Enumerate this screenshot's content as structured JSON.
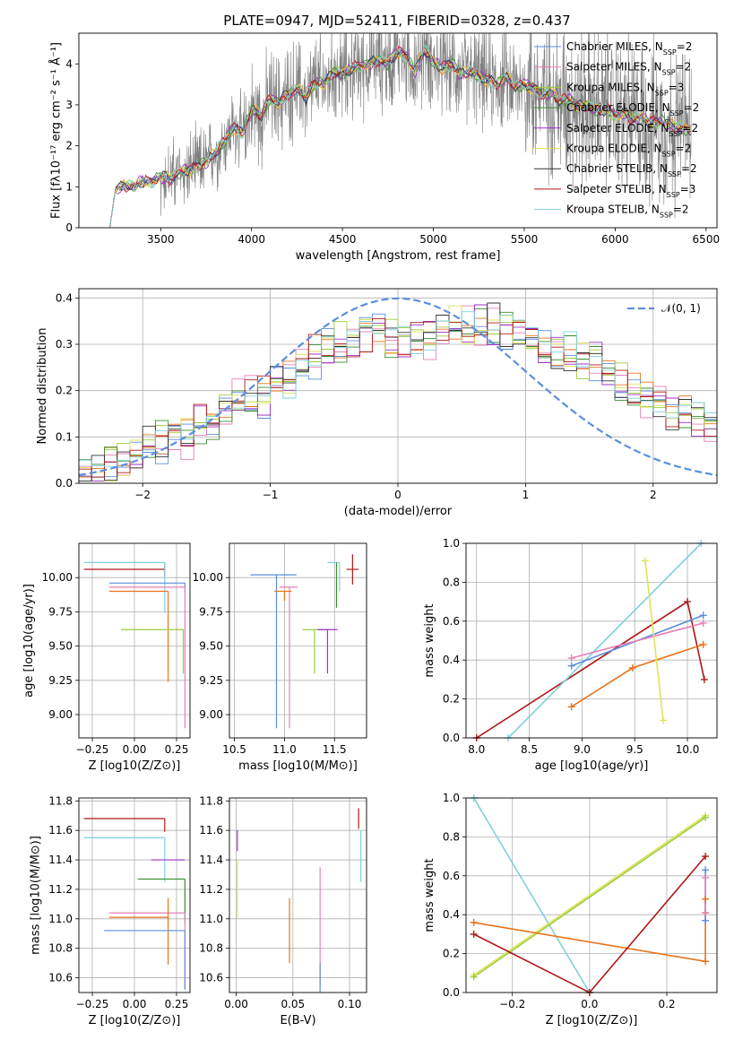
{
  "figure_title": "PLATE=0947, MJD=52411, FIBERID=0328, z=0.437",
  "colors": {
    "Chabrier MILES": "#5b8ee0",
    "Salpeter MILES": "#e67fb8",
    "Kroupa MILES": "#9ccc3a",
    "Chabrier ELODIE": "#3a8d2e",
    "Salpeter ELODIE": "#9b31c6",
    "Kroupa ELODIE": "#dfe35a",
    "Chabrier STELIB": "#333333",
    "Salpeter STELIB": "#b01818",
    "Kroupa STELIB": "#7fd0dc",
    "orange": "#e8731a",
    "data": "#808080"
  },
  "chart_data": [
    {
      "id": "spectrum",
      "type": "line",
      "title": "PLATE=0947, MJD=52411, FIBERID=0328, z=0.437",
      "xlabel": "wavelength [Angstrom, rest frame]",
      "ylabel": "Flux [fλ10⁻¹⁷ erg cm⁻² s⁻¹ Å⁻¹]",
      "xlim": [
        3050,
        6560
      ],
      "ylim": [
        0,
        4.75
      ],
      "xticks": [
        3500,
        4000,
        4500,
        5000,
        5500,
        6000,
        6500
      ],
      "yticks": [
        0,
        1,
        2,
        3,
        4
      ],
      "grid": false,
      "legend_position": "top-right",
      "legend": [
        "Chabrier MILES, N_SSP=2",
        "Salpeter MILES, N_SSP=2",
        "Kroupa MILES, N_SSP=3",
        "Chabrier ELODIE, N_SSP=2",
        "Salpeter ELODIE, N_SSP=2",
        "Kroupa ELODIE, N_SSP=2",
        "Chabrier STELIB, N_SSP=2",
        "Salpeter STELIB, N_SSP=3",
        "Kroupa STELIB, N_SSP=2"
      ],
      "model_curve": {
        "x": [
          3220,
          3250,
          3300,
          3350,
          3400,
          3450,
          3500,
          3550,
          3600,
          3650,
          3700,
          3750,
          3800,
          3850,
          3900,
          3950,
          4000,
          4050,
          4100,
          4150,
          4200,
          4250,
          4300,
          4350,
          4400,
          4450,
          4500,
          4550,
          4600,
          4650,
          4700,
          4750,
          4800,
          4850,
          4900,
          4950,
          5000,
          5050,
          5100,
          5150,
          5200,
          5250,
          5300,
          5350,
          5400,
          5450,
          5500,
          5550,
          5600,
          5650,
          5700,
          5750,
          5800,
          5850,
          5900,
          5950,
          6000,
          6050,
          6100,
          6150,
          6200,
          6250,
          6300,
          6350,
          6400
        ],
        "y": [
          0.0,
          0.9,
          1.05,
          1.0,
          1.15,
          1.1,
          1.25,
          1.2,
          1.35,
          1.4,
          1.5,
          1.6,
          1.85,
          2.1,
          2.45,
          2.3,
          2.9,
          2.75,
          3.15,
          3.05,
          3.25,
          3.4,
          3.2,
          3.55,
          3.5,
          3.8,
          3.75,
          3.9,
          3.95,
          4.0,
          4.1,
          4.0,
          4.3,
          4.2,
          3.8,
          4.35,
          4.05,
          3.9,
          4.0,
          3.75,
          3.85,
          3.7,
          3.6,
          3.5,
          3.7,
          3.45,
          3.5,
          3.4,
          3.25,
          3.3,
          3.1,
          3.15,
          2.95,
          3.0,
          2.85,
          2.9,
          2.75,
          2.8,
          2.65,
          2.7,
          2.55,
          2.6,
          2.5,
          2.45,
          2.4
        ]
      }
    },
    {
      "id": "residuals",
      "type": "step",
      "xlabel": "(data-model)/error",
      "ylabel": "Normed distribution",
      "xlim": [
        -2.5,
        2.5
      ],
      "ylim": [
        0,
        0.42
      ],
      "xticks": [
        -2,
        -1,
        0,
        1,
        2
      ],
      "yticks": [
        0.0,
        0.1,
        0.2,
        0.3,
        0.4
      ],
      "grid": true,
      "legend_position": "top-right",
      "legend": [
        "𝒩(0, 1)"
      ],
      "gaussian": {
        "mean": 0,
        "sigma": 1
      },
      "histogram": {
        "bin_start": -2.5,
        "bin_width": 0.1,
        "y": [
          0.02,
          0.025,
          0.04,
          0.05,
          0.06,
          0.08,
          0.085,
          0.1,
          0.1,
          0.12,
          0.13,
          0.15,
          0.18,
          0.19,
          0.19,
          0.21,
          0.22,
          0.25,
          0.27,
          0.29,
          0.3,
          0.31,
          0.33,
          0.32,
          0.31,
          0.3,
          0.3,
          0.31,
          0.33,
          0.34,
          0.34,
          0.35,
          0.34,
          0.33,
          0.32,
          0.31,
          0.3,
          0.29,
          0.28,
          0.27,
          0.26,
          0.24,
          0.22,
          0.2,
          0.19,
          0.17,
          0.16,
          0.15,
          0.14,
          0.13
        ]
      }
    },
    {
      "id": "age-vs-Z",
      "type": "errorbar",
      "xlabel": "Z [log10(Z/Z⊙)]",
      "ylabel": "age  [log10(age/yr)]",
      "xlim": [
        -0.33,
        0.33
      ],
      "ylim": [
        8.83,
        10.25
      ],
      "xticks": [
        -0.25,
        0.0,
        0.25
      ],
      "yticks": [
        9.0,
        9.25,
        9.5,
        9.75,
        10.0
      ],
      "grid": true,
      "points": [
        {
          "series": "Salpeter STELIB",
          "x": 0.18,
          "y": 10.06,
          "xerr": [
            0.48,
            0.0
          ],
          "yerr": [
            0.05,
            0.05
          ]
        },
        {
          "series": "Kroupa STELIB",
          "x": 0.18,
          "y": 10.11,
          "xerr": [
            0.48,
            0.0
          ],
          "yerr": [
            0.37,
            0.0
          ]
        },
        {
          "series": "Chabrier MILES",
          "x": 0.3,
          "y": 9.96,
          "xerr": [
            0.45,
            0.0
          ],
          "yerr": [
            0.07,
            0.0
          ]
        },
        {
          "series": "Salpeter MILES",
          "x": 0.3,
          "y": 9.93,
          "xerr": [
            0.45,
            0.0
          ],
          "yerr": [
            1.03,
            0.0
          ]
        },
        {
          "series": "orange",
          "x": 0.2,
          "y": 9.9,
          "xerr": [
            0.35,
            0.0
          ],
          "yerr": [
            0.66,
            0.0
          ]
        },
        {
          "series": "Kroupa MILES",
          "x": 0.29,
          "y": 9.62,
          "xerr": [
            0.37,
            0.0
          ],
          "yerr": [
            0.32,
            0.0
          ]
        }
      ]
    },
    {
      "id": "age-vs-mass",
      "type": "errorbar",
      "xlabel": "mass [log10(M/M⊙)]",
      "ylabel": "",
      "xlim": [
        10.45,
        11.82
      ],
      "ylim": [
        8.83,
        10.25
      ],
      "xticks": [
        10.5,
        11.0,
        11.5
      ],
      "yticks": [
        9.0,
        9.25,
        9.5,
        9.75,
        10.0
      ],
      "grid": true,
      "points": [
        {
          "series": "Salpeter STELIB",
          "x": 11.68,
          "y": 10.06,
          "xerr": [
            0.06,
            0.06
          ],
          "yerr": [
            0.11,
            0.11
          ]
        },
        {
          "series": "Kroupa STELIB",
          "x": 11.55,
          "y": 10.11,
          "xerr": [
            0.12,
            0.0
          ],
          "yerr": [
            0.21,
            0.0
          ]
        },
        {
          "series": "Chabrier MILES",
          "x": 10.92,
          "y": 10.02,
          "xerr": [
            0.26,
            0.2
          ],
          "yerr": [
            1.12,
            0.0
          ]
        },
        {
          "series": "Salpeter MILES",
          "x": 11.05,
          "y": 9.93,
          "xerr": [
            0.1,
            0.08
          ],
          "yerr": [
            1.03,
            0.0
          ]
        },
        {
          "series": "orange",
          "x": 11.0,
          "y": 9.9,
          "xerr": [
            0.1,
            0.07
          ],
          "yerr": [
            0.07,
            0.0
          ]
        },
        {
          "series": "Kroupa MILES",
          "x": 11.3,
          "y": 9.62,
          "xerr": [
            0.12,
            0.12
          ],
          "yerr": [
            0.32,
            0.0
          ]
        },
        {
          "series": "Salpeter ELODIE",
          "x": 11.43,
          "y": 9.62,
          "xerr": [
            0.1,
            0.1
          ],
          "yerr": [
            0.32,
            0.0
          ]
        },
        {
          "series": "Chabrier ELODIE",
          "x": 11.52,
          "y": 10.11,
          "xerr": [
            0.0,
            0.0
          ],
          "yerr": [
            0.33,
            0.0
          ]
        }
      ]
    },
    {
      "id": "mass-weight-vs-age",
      "type": "line",
      "xlabel": "age  [log10(age/yr)]",
      "ylabel": "mass weight",
      "xlim": [
        7.9,
        10.28
      ],
      "ylim": [
        0,
        1.0
      ],
      "xticks": [
        8.0,
        8.5,
        9.0,
        9.5,
        10.0
      ],
      "yticks": [
        0.0,
        0.2,
        0.4,
        0.6,
        0.8,
        1.0
      ],
      "grid": true,
      "series": [
        {
          "name": "Salpeter STELIB",
          "x": [
            8.0,
            10.0,
            10.16
          ],
          "y": [
            0.0,
            0.7,
            0.3
          ]
        },
        {
          "name": "Kroupa STELIB",
          "x": [
            8.3,
            10.13
          ],
          "y": [
            0.0,
            1.0
          ]
        },
        {
          "name": "Chabrier MILES",
          "x": [
            8.9,
            10.15
          ],
          "y": [
            0.37,
            0.63
          ]
        },
        {
          "name": "Salpeter MILES",
          "x": [
            8.9,
            10.15
          ],
          "y": [
            0.41,
            0.59
          ]
        },
        {
          "name": "orange",
          "x": [
            8.9,
            9.48,
            10.15
          ],
          "y": [
            0.16,
            0.36,
            0.48
          ]
        },
        {
          "name": "Kroupa ELODIE",
          "x": [
            9.6,
            9.77
          ],
          "y": [
            0.91,
            0.09
          ]
        }
      ]
    },
    {
      "id": "mass-vs-Z",
      "type": "errorbar",
      "xlabel": "Z [log10(Z/Z⊙)]",
      "ylabel": "mass [log10(M/M⊙)]",
      "xlim": [
        -0.33,
        0.33
      ],
      "ylim": [
        10.5,
        11.82
      ],
      "xticks": [
        -0.25,
        0.0,
        0.25
      ],
      "yticks": [
        10.6,
        10.8,
        11.0,
        11.2,
        11.4,
        11.6,
        11.8
      ],
      "grid": true,
      "points": [
        {
          "series": "Salpeter STELIB",
          "x": 0.18,
          "y": 11.68,
          "xerr": [
            0.48,
            0.0
          ],
          "yerr": [
            0.09,
            0.0
          ]
        },
        {
          "series": "Kroupa STELIB",
          "x": 0.18,
          "y": 11.55,
          "xerr": [
            0.48,
            0.0
          ],
          "yerr": [
            0.3,
            0.0
          ]
        },
        {
          "series": "Salpeter ELODIE",
          "x": 0.3,
          "y": 11.4,
          "xerr": [
            0.2,
            0.0
          ],
          "yerr": [
            0.0,
            0.0
          ]
        },
        {
          "series": "Chabrier ELODIE",
          "x": 0.3,
          "y": 11.27,
          "xerr": [
            0.28,
            0.0
          ],
          "yerr": [
            0.3,
            0.0
          ]
        },
        {
          "series": "Salpeter MILES",
          "x": 0.3,
          "y": 11.04,
          "xerr": [
            0.45,
            0.0
          ],
          "yerr": [
            0.52,
            0.0
          ]
        },
        {
          "series": "orange",
          "x": 0.2,
          "y": 11.01,
          "xerr": [
            0.35,
            0.0
          ],
          "yerr": [
            0.32,
            0.13
          ]
        },
        {
          "series": "Chabrier MILES",
          "x": 0.3,
          "y": 10.92,
          "xerr": [
            0.48,
            0.0
          ],
          "yerr": [
            0.4,
            0.0
          ]
        }
      ]
    },
    {
      "id": "mass-vs-ebv",
      "type": "errorbar",
      "xlabel": "E(B-V)",
      "ylabel": "",
      "xlim": [
        -0.006,
        0.115
      ],
      "ylim": [
        10.5,
        11.82
      ],
      "xticks": [
        0.0,
        0.05,
        0.1
      ],
      "yticks": [
        10.6,
        10.8,
        11.0,
        11.2,
        11.4,
        11.6,
        11.8
      ],
      "grid": true,
      "points": [
        {
          "series": "Salpeter STELIB",
          "x": 0.108,
          "y": 11.68,
          "xerr": [
            0.0,
            0.0
          ],
          "yerr": [
            0.07,
            0.07
          ]
        },
        {
          "series": "Kroupa STELIB",
          "x": 0.11,
          "y": 11.45,
          "xerr": [
            0.0,
            0.0
          ],
          "yerr": [
            0.2,
            0.15
          ]
        },
        {
          "series": "Salpeter ELODIE",
          "x": 0.001,
          "y": 11.53,
          "xerr": [
            0.0,
            0.0
          ],
          "yerr": [
            0.07,
            0.07
          ]
        },
        {
          "series": "Kroupa ELODIE",
          "x": 0.001,
          "y": 11.2,
          "xerr": [
            0.0,
            0.0
          ],
          "yerr": [
            0.2,
            0.2
          ]
        },
        {
          "series": "Salpeter MILES",
          "x": 0.074,
          "y": 10.95,
          "xerr": [
            0.0,
            0.0
          ],
          "yerr": [
            0.4,
            0.4
          ]
        },
        {
          "series": "Chabrier MILES",
          "x": 0.074,
          "y": 10.6,
          "xerr": [
            0.0,
            0.0
          ],
          "yerr": [
            0.1,
            0.1
          ]
        },
        {
          "series": "orange",
          "x": 0.047,
          "y": 10.92,
          "xerr": [
            0.0,
            0.0
          ],
          "yerr": [
            0.22,
            0.22
          ]
        }
      ]
    },
    {
      "id": "mass-weight-vs-Z",
      "type": "line",
      "xlabel": "Z [log10(Z/Z⊙)]",
      "ylabel": "mass weight",
      "xlim": [
        -0.32,
        0.33
      ],
      "ylim": [
        0,
        1.0
      ],
      "xticks": [
        -0.2,
        0.0,
        0.2
      ],
      "yticks": [
        0.0,
        0.2,
        0.4,
        0.6,
        0.8,
        1.0
      ],
      "grid": true,
      "series": [
        {
          "name": "Kroupa STELIB",
          "x": [
            -0.3,
            0.0
          ],
          "y": [
            1.0,
            0.0
          ]
        },
        {
          "name": "Kroupa ELODIE",
          "x": [
            -0.3,
            0.3
          ],
          "y": [
            0.09,
            0.91
          ]
        },
        {
          "name": "Kroupa MILES",
          "x": [
            -0.3,
            0.3
          ],
          "y": [
            0.08,
            0.9
          ]
        },
        {
          "name": "orange",
          "x": [
            -0.3,
            0.3,
            0.3,
            0.3
          ],
          "y": [
            0.36,
            0.16,
            0.41,
            0.48
          ]
        },
        {
          "name": "Salpeter STELIB",
          "x": [
            -0.3,
            0.0,
            0.3
          ],
          "y": [
            0.3,
            0.0,
            0.7
          ]
        },
        {
          "name": "Chabrier MILES",
          "x": [
            0.3,
            0.3
          ],
          "y": [
            0.37,
            0.63
          ]
        },
        {
          "name": "Salpeter MILES",
          "x": [
            0.3,
            0.3
          ],
          "y": [
            0.41,
            0.59
          ]
        }
      ]
    }
  ]
}
